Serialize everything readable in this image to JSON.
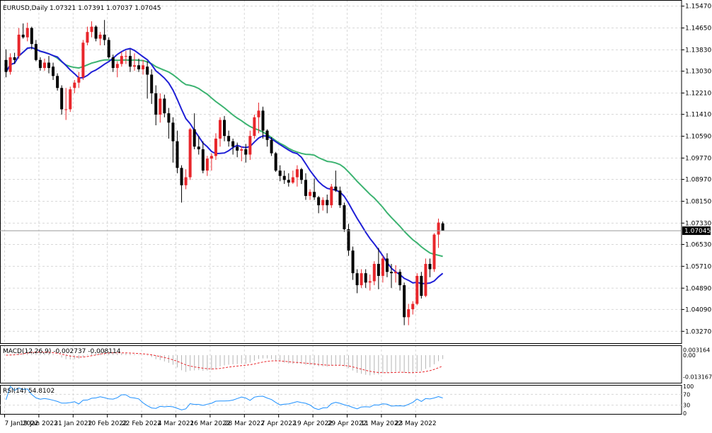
{
  "chart_data": {
    "type": "candlestick",
    "title": "EURUSD,Daily",
    "ohlc_header": "1.07321 1.07391 1.07037 1.07045",
    "current_price": 1.07045,
    "current_price_label": "1.07045",
    "ylim": [
      1.028,
      1.157
    ],
    "y_ticks": [
      1.1547,
      1.1465,
      1.1383,
      1.1303,
      1.1221,
      1.1141,
      1.1059,
      1.0977,
      1.0897,
      1.0815,
      1.0733,
      1.0653,
      1.0571,
      1.0489,
      1.0409,
      1.0327
    ],
    "y_tick_labels": [
      "1.15470",
      "1.14650",
      "1.13830",
      "1.13030",
      "1.12210",
      "1.11410",
      "1.10590",
      "1.09770",
      "1.08970",
      "1.08150",
      "1.07330",
      "1.06530",
      "1.05710",
      "1.04890",
      "1.04090",
      "1.03270"
    ],
    "x_labels": [
      "7 Jan 2022",
      "19 Jan 2022",
      "31 Jan 2022",
      "10 Feb 2022",
      "22 Feb 2022",
      "4 Mar 2022",
      "16 Mar 2022",
      "28 Mar 2022",
      "7 Apr 2022",
      "19 Apr 2022",
      "29 Apr 2022",
      "11 May 2022",
      "23 May 2022"
    ],
    "x_label_bars": [
      0,
      8,
      16,
      24,
      32,
      40,
      48,
      56,
      64,
      72,
      80,
      88,
      96
    ],
    "candles": [
      {
        "o": 1.1345,
        "h": 1.1385,
        "l": 1.128,
        "c": 1.13
      },
      {
        "o": 1.13,
        "h": 1.137,
        "l": 1.129,
        "c": 1.1355
      },
      {
        "o": 1.1355,
        "h": 1.1372,
        "l": 1.133,
        "c": 1.1345
      },
      {
        "o": 1.136,
        "h": 1.1465,
        "l": 1.135,
        "c": 1.144
      },
      {
        "o": 1.144,
        "h": 1.1482,
        "l": 1.1425,
        "c": 1.143
      },
      {
        "o": 1.143,
        "h": 1.1485,
        "l": 1.1415,
        "c": 1.1465
      },
      {
        "o": 1.1465,
        "h": 1.147,
        "l": 1.1385,
        "c": 1.1405
      },
      {
        "o": 1.1405,
        "h": 1.142,
        "l": 1.134,
        "c": 1.1345
      },
      {
        "o": 1.1345,
        "h": 1.1355,
        "l": 1.1305,
        "c": 1.1315
      },
      {
        "o": 1.1315,
        "h": 1.135,
        "l": 1.1305,
        "c": 1.1335
      },
      {
        "o": 1.1335,
        "h": 1.136,
        "l": 1.1295,
        "c": 1.1315
      },
      {
        "o": 1.132,
        "h": 1.1335,
        "l": 1.127,
        "c": 1.1285
      },
      {
        "o": 1.1285,
        "h": 1.1295,
        "l": 1.123,
        "c": 1.124
      },
      {
        "o": 1.124,
        "h": 1.125,
        "l": 1.114,
        "c": 1.116
      },
      {
        "o": 1.116,
        "h": 1.124,
        "l": 1.112,
        "c": 1.116
      },
      {
        "o": 1.116,
        "h": 1.1245,
        "l": 1.115,
        "c": 1.1235
      },
      {
        "o": 1.124,
        "h": 1.127,
        "l": 1.122,
        "c": 1.126
      },
      {
        "o": 1.126,
        "h": 1.13,
        "l": 1.124,
        "c": 1.128
      },
      {
        "o": 1.128,
        "h": 1.142,
        "l": 1.127,
        "c": 1.141
      },
      {
        "o": 1.141,
        "h": 1.147,
        "l": 1.14,
        "c": 1.145
      },
      {
        "o": 1.145,
        "h": 1.149,
        "l": 1.143,
        "c": 1.147
      },
      {
        "o": 1.147,
        "h": 1.1475,
        "l": 1.1415,
        "c": 1.1425
      },
      {
        "o": 1.1425,
        "h": 1.145,
        "l": 1.14,
        "c": 1.144
      },
      {
        "o": 1.144,
        "h": 1.1495,
        "l": 1.14,
        "c": 1.142
      },
      {
        "o": 1.142,
        "h": 1.143,
        "l": 1.135,
        "c": 1.1355
      },
      {
        "o": 1.1355,
        "h": 1.1365,
        "l": 1.13,
        "c": 1.1315
      },
      {
        "o": 1.1315,
        "h": 1.134,
        "l": 1.128,
        "c": 1.133
      },
      {
        "o": 1.133,
        "h": 1.1375,
        "l": 1.132,
        "c": 1.136
      },
      {
        "o": 1.136,
        "h": 1.138,
        "l": 1.133,
        "c": 1.136
      },
      {
        "o": 1.136,
        "h": 1.1385,
        "l": 1.13,
        "c": 1.132
      },
      {
        "o": 1.132,
        "h": 1.137,
        "l": 1.1305,
        "c": 1.1325
      },
      {
        "o": 1.1325,
        "h": 1.135,
        "l": 1.13,
        "c": 1.131
      },
      {
        "o": 1.131,
        "h": 1.1345,
        "l": 1.129,
        "c": 1.1325
      },
      {
        "o": 1.132,
        "h": 1.134,
        "l": 1.12,
        "c": 1.129
      },
      {
        "o": 1.129,
        "h": 1.131,
        "l": 1.118,
        "c": 1.122
      },
      {
        "o": 1.122,
        "h": 1.125,
        "l": 1.11,
        "c": 1.114
      },
      {
        "o": 1.114,
        "h": 1.122,
        "l": 1.111,
        "c": 1.12
      },
      {
        "o": 1.12,
        "h": 1.1215,
        "l": 1.113,
        "c": 1.1145
      },
      {
        "o": 1.1145,
        "h": 1.1165,
        "l": 1.105,
        "c": 1.111
      },
      {
        "o": 1.111,
        "h": 1.113,
        "l": 1.096,
        "c": 1.104
      },
      {
        "o": 1.104,
        "h": 1.108,
        "l": 1.092,
        "c": 1.094
      },
      {
        "o": 1.094,
        "h": 1.095,
        "l": 1.081,
        "c": 1.0875
      },
      {
        "o": 1.0875,
        "h": 1.0935,
        "l": 1.086,
        "c": 1.0905
      },
      {
        "o": 1.0905,
        "h": 1.109,
        "l": 1.0895,
        "c": 1.1085
      },
      {
        "o": 1.1085,
        "h": 1.1145,
        "l": 1.101,
        "c": 1.102
      },
      {
        "o": 1.102,
        "h": 1.106,
        "l": 1.099,
        "c": 1.101
      },
      {
        "o": 1.101,
        "h": 1.104,
        "l": 1.092,
        "c": 1.093
      },
      {
        "o": 1.093,
        "h": 1.0985,
        "l": 1.091,
        "c": 1.0975
      },
      {
        "o": 1.0975,
        "h": 1.0995,
        "l": 1.093,
        "c": 1.0985
      },
      {
        "o": 1.0985,
        "h": 1.107,
        "l": 1.097,
        "c": 1.105
      },
      {
        "o": 1.105,
        "h": 1.113,
        "l": 1.102,
        "c": 1.112
      },
      {
        "o": 1.112,
        "h": 1.1135,
        "l": 1.104,
        "c": 1.106
      },
      {
        "o": 1.106,
        "h": 1.108,
        "l": 1.102,
        "c": 1.104
      },
      {
        "o": 1.104,
        "h": 1.105,
        "l": 1.099,
        "c": 1.102
      },
      {
        "o": 1.102,
        "h": 1.1035,
        "l": 1.098,
        "c": 1.1005
      },
      {
        "o": 1.1005,
        "h": 1.102,
        "l": 1.0965,
        "c": 1.101
      },
      {
        "o": 1.101,
        "h": 1.103,
        "l": 1.096,
        "c": 1.099
      },
      {
        "o": 1.099,
        "h": 1.108,
        "l": 1.097,
        "c": 1.106
      },
      {
        "o": 1.106,
        "h": 1.114,
        "l": 1.105,
        "c": 1.113
      },
      {
        "o": 1.113,
        "h": 1.1185,
        "l": 1.107,
        "c": 1.1155
      },
      {
        "o": 1.1155,
        "h": 1.117,
        "l": 1.105,
        "c": 1.108
      },
      {
        "o": 1.108,
        "h": 1.1085,
        "l": 1.102,
        "c": 1.1045
      },
      {
        "o": 1.1045,
        "h": 1.1055,
        "l": 1.0985,
        "c": 1.0995
      },
      {
        "o": 1.0995,
        "h": 1.1,
        "l": 1.0925,
        "c": 1.093
      },
      {
        "o": 1.093,
        "h": 1.095,
        "l": 1.089,
        "c": 1.091
      },
      {
        "o": 1.091,
        "h": 1.093,
        "l": 1.088,
        "c": 1.0895
      },
      {
        "o": 1.0895,
        "h": 1.092,
        "l": 1.087,
        "c": 1.0885
      },
      {
        "o": 1.0885,
        "h": 1.093,
        "l": 1.088,
        "c": 1.0905
      },
      {
        "o": 1.0905,
        "h": 1.095,
        "l": 1.087,
        "c": 1.0935
      },
      {
        "o": 1.0935,
        "h": 1.094,
        "l": 1.088,
        "c": 1.0895
      },
      {
        "o": 1.0895,
        "h": 1.092,
        "l": 1.082,
        "c": 1.0835
      },
      {
        "o": 1.0835,
        "h": 1.086,
        "l": 1.082,
        "c": 1.085
      },
      {
        "o": 1.085,
        "h": 1.09,
        "l": 1.082,
        "c": 1.083
      },
      {
        "o": 1.083,
        "h": 1.0835,
        "l": 1.077,
        "c": 1.08
      },
      {
        "o": 1.08,
        "h": 1.083,
        "l": 1.078,
        "c": 1.082
      },
      {
        "o": 1.082,
        "h": 1.084,
        "l": 1.077,
        "c": 1.08
      },
      {
        "o": 1.08,
        "h": 1.088,
        "l": 1.079,
        "c": 1.087
      },
      {
        "o": 1.087,
        "h": 1.093,
        "l": 1.085,
        "c": 1.0855
      },
      {
        "o": 1.0855,
        "h": 1.087,
        "l": 1.079,
        "c": 1.08
      },
      {
        "o": 1.08,
        "h": 1.081,
        "l": 1.07,
        "c": 1.071
      },
      {
        "o": 1.071,
        "h": 1.073,
        "l": 1.061,
        "c": 1.063
      },
      {
        "o": 1.063,
        "h": 1.0645,
        "l": 1.052,
        "c": 1.0545
      },
      {
        "o": 1.0545,
        "h": 1.056,
        "l": 1.047,
        "c": 1.05
      },
      {
        "o": 1.05,
        "h": 1.056,
        "l": 1.049,
        "c": 1.0545
      },
      {
        "o": 1.0545,
        "h": 1.056,
        "l": 1.049,
        "c": 1.051
      },
      {
        "o": 1.051,
        "h": 1.054,
        "l": 1.048,
        "c": 1.0515
      },
      {
        "o": 1.0515,
        "h": 1.059,
        "l": 1.05,
        "c": 1.058
      },
      {
        "o": 1.058,
        "h": 1.064,
        "l": 1.0485,
        "c": 1.0535
      },
      {
        "o": 1.0535,
        "h": 1.061,
        "l": 1.051,
        "c": 1.06
      },
      {
        "o": 1.06,
        "h": 1.062,
        "l": 1.053,
        "c": 1.055
      },
      {
        "o": 1.055,
        "h": 1.058,
        "l": 1.049,
        "c": 1.0545
      },
      {
        "o": 1.0545,
        "h": 1.0575,
        "l": 1.051,
        "c": 1.055
      },
      {
        "o": 1.055,
        "h": 1.056,
        "l": 1.048,
        "c": 1.05
      },
      {
        "o": 1.05,
        "h": 1.051,
        "l": 1.035,
        "c": 1.038
      },
      {
        "o": 1.038,
        "h": 1.043,
        "l": 1.035,
        "c": 1.041
      },
      {
        "o": 1.041,
        "h": 1.044,
        "l": 1.039,
        "c": 1.043
      },
      {
        "o": 1.043,
        "h": 1.0545,
        "l": 1.0425,
        "c": 1.0535
      },
      {
        "o": 1.0535,
        "h": 1.055,
        "l": 1.045,
        "c": 1.046
      },
      {
        "o": 1.046,
        "h": 1.06,
        "l": 1.0455,
        "c": 1.058
      },
      {
        "o": 1.058,
        "h": 1.06,
        "l": 1.053,
        "c": 1.056
      },
      {
        "o": 1.056,
        "h": 1.0695,
        "l": 1.055,
        "c": 1.069
      },
      {
        "o": 1.069,
        "h": 1.075,
        "l": 1.064,
        "c": 1.0735
      },
      {
        "o": 1.0732,
        "h": 1.0739,
        "l": 1.0704,
        "c": 1.07045
      }
    ],
    "indicators": {
      "ma_blue_color": "#1f1fd6",
      "ma_green_color": "#3cb371",
      "bull_color": "#e8262b",
      "bear_color": "#000000"
    },
    "macd": {
      "label": "MACD(12,26,9) -0.002737 -0.008114",
      "value": -0.002737,
      "signal": -0.008114,
      "ylim": [
        -0.0165,
        0.0052
      ],
      "y_tick_labels": [
        "0.003164",
        "0.00",
        "-0.013167"
      ],
      "y_tick_values": [
        0.003164,
        0.0,
        -0.013167
      ]
    },
    "rsi": {
      "label": "RSI(14) 54.8102",
      "value": 54.8102,
      "ylim": [
        0,
        100
      ],
      "y_tick_labels": [
        "100",
        "70",
        "30",
        "0"
      ],
      "y_tick_values": [
        100,
        70,
        30,
        0
      ]
    }
  }
}
